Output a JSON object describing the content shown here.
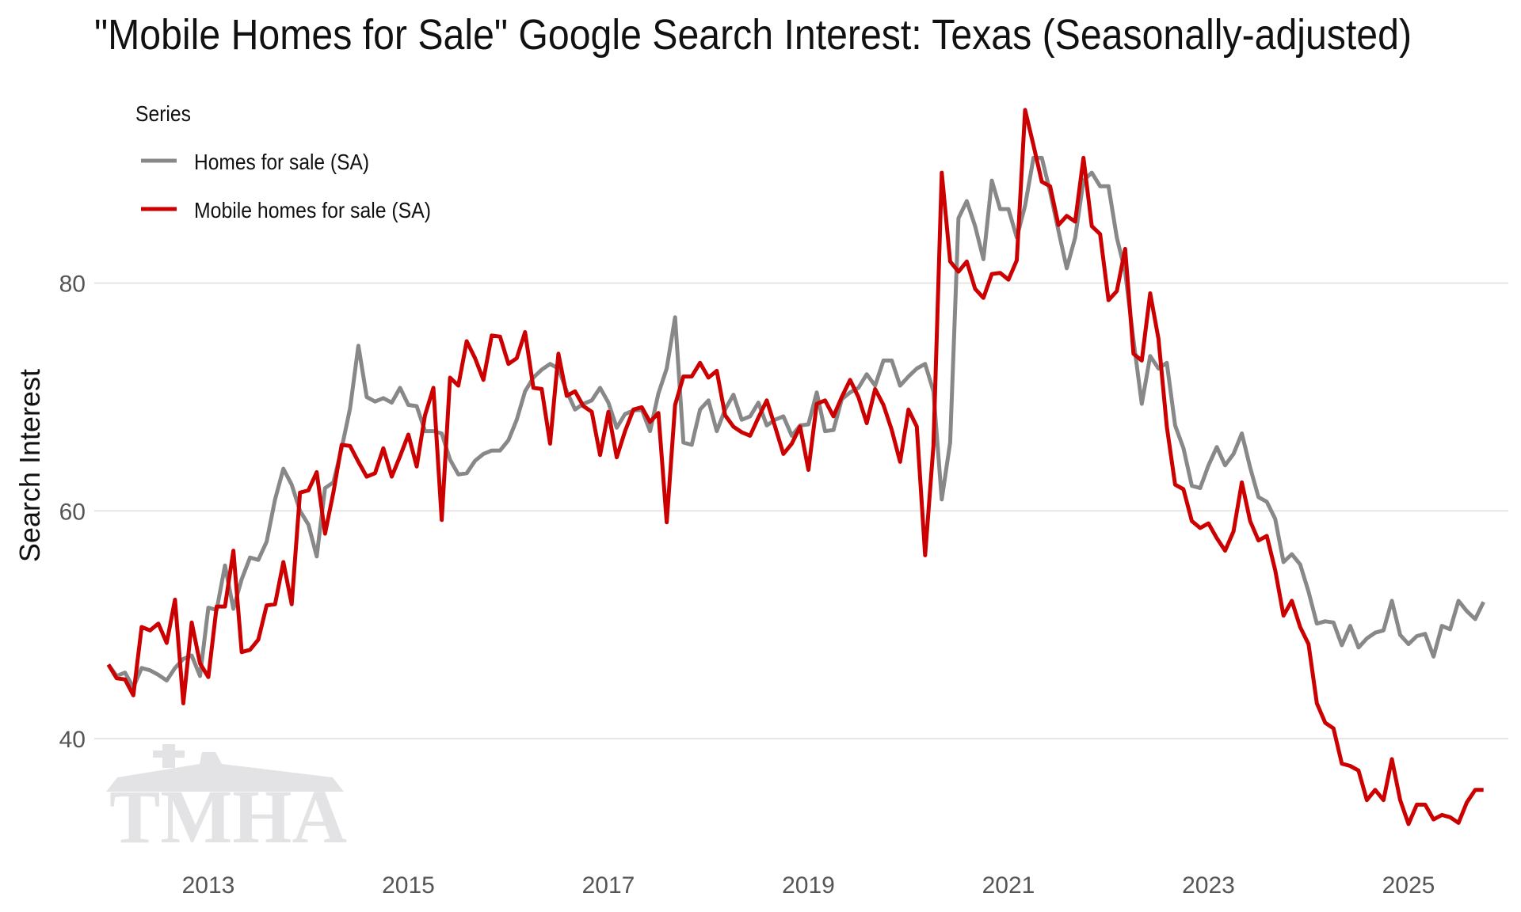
{
  "chart_data": {
    "type": "line",
    "title": "\"Mobile Homes for Sale\" Google Search Interest: Texas (Seasonally-adjusted)",
    "xlabel": "",
    "ylabel": "Search Interest",
    "x_start": "2012-01",
    "frequency": "monthly",
    "xlim": [
      2012.0,
      2025.8
    ],
    "ylim": [
      30,
      96
    ],
    "x_ticks": [
      2013,
      2015,
      2017,
      2019,
      2021,
      2023,
      2025
    ],
    "x_tick_labels": [
      "2013",
      "2015",
      "2017",
      "2019",
      "2021",
      "2023",
      "2025"
    ],
    "y_ticks": [
      40,
      60,
      80
    ],
    "y_tick_labels": [
      "40",
      "60",
      "80"
    ],
    "grid": "horizontal",
    "legend": {
      "title": "Series",
      "placement": "top-left"
    },
    "series": [
      {
        "name": "Homes for sale (SA)",
        "color": "#888888",
        "values": [
          46.5,
          45.5,
          45.8,
          44.5,
          46.2,
          46,
          45.6,
          45.1,
          46.2,
          47,
          47.3,
          45.5,
          51.5,
          51.3,
          55.2,
          51.4,
          54,
          55.9,
          55.7,
          57.3,
          61,
          63.7,
          62.3,
          60,
          58.8,
          56,
          62,
          62.5,
          65.5,
          69,
          74.5,
          70,
          69.6,
          69.9,
          69.5,
          70.8,
          69.3,
          69.2,
          67,
          67,
          66.8,
          64.5,
          63.2,
          63.3,
          64.4,
          65,
          65.3,
          65.3,
          66.2,
          68,
          70.5,
          71.7,
          72.4,
          72.9,
          72.5,
          70.5,
          68.9,
          69.4,
          69.7,
          70.8,
          69.5,
          67.3,
          68.5,
          68.8,
          68.9,
          67,
          70.3,
          72.5,
          77,
          66,
          65.8,
          68.9,
          69.7,
          67,
          68.9,
          70.2,
          68,
          68.3,
          69.5,
          67.5,
          68,
          68.3,
          66.6,
          67.5,
          67.6,
          70.4,
          67,
          67.1,
          69.8,
          70.4,
          70.8,
          72,
          71,
          73.2,
          73.2,
          71,
          71.8,
          72.5,
          72.9,
          70.5,
          61,
          66,
          85.7,
          87.2,
          85,
          82.1,
          89,
          86.5,
          86.5,
          84,
          86.8,
          91,
          91,
          88,
          84.6,
          81.3,
          84,
          89,
          89.7,
          88.5,
          88.5,
          84,
          81,
          75,
          69.4,
          73.6,
          72.5,
          73,
          67.5,
          65.5,
          62.2,
          62,
          64,
          65.6,
          64,
          65,
          66.8,
          63.8,
          61.2,
          60.8,
          59.3,
          55.5,
          56.2,
          55.3,
          52.9,
          50.1,
          50.3,
          50.2,
          48.2,
          49.9,
          48,
          48.8,
          49.3,
          49.5,
          52.1,
          49.1,
          48.3,
          49,
          49.2,
          47.2,
          49.9,
          49.6,
          52.1,
          51.2,
          50.5,
          52
        ]
      },
      {
        "name": "Mobile homes for sale (SA)",
        "color": "#cc0000",
        "values": [
          46.5,
          45.3,
          45.2,
          43.8,
          49.8,
          49.5,
          50.1,
          48.4,
          52.2,
          43.1,
          50.2,
          46.6,
          45.4,
          51.6,
          51.6,
          56.5,
          47.6,
          47.8,
          48.7,
          51.7,
          51.8,
          55.5,
          51.8,
          61.6,
          61.8,
          63.4,
          58,
          61.6,
          65.8,
          65.7,
          64.3,
          63,
          63.3,
          65.5,
          63,
          64.8,
          66.7,
          63.9,
          68.4,
          70.8,
          59.2,
          71.7,
          71,
          74.9,
          73.4,
          71.5,
          75.4,
          75.3,
          72.9,
          73.4,
          75.7,
          70.8,
          70.7,
          65.9,
          73.8,
          70.1,
          70.5,
          69.2,
          68.7,
          64.9,
          68.7,
          64.7,
          67,
          68.9,
          69.1,
          67.8,
          68.6,
          59,
          69.3,
          71.8,
          71.8,
          73,
          71.7,
          72.3,
          68.4,
          67.4,
          66.9,
          66.6,
          68.2,
          69.7,
          67.4,
          65,
          65.9,
          67.4,
          63.6,
          69.4,
          69.7,
          68.3,
          70,
          71.5,
          70,
          67.7,
          70.7,
          69.3,
          67.1,
          64.3,
          68.9,
          67.4,
          56.1,
          65.7,
          89.7,
          81.9,
          81,
          81.9,
          79.5,
          78.7,
          80.8,
          80.9,
          80.3,
          82,
          95.2,
          92.1,
          88.9,
          88.5,
          85.1,
          85.9,
          85.4,
          91,
          85,
          84.3,
          78.5,
          79.3,
          83,
          73.8,
          73.2,
          79.1,
          75.1,
          67.4,
          62.3,
          61.9,
          59.1,
          58.5,
          58.9,
          57.6,
          56.5,
          58.2,
          62.5,
          59.1,
          57.4,
          57.8,
          54.8,
          50.8,
          52.1,
          49.8,
          48.3,
          43.1,
          41.4,
          40.9,
          37.8,
          37.6,
          37.2,
          34.6,
          35.5,
          34.6,
          38.2,
          34.6,
          32.5,
          34.2,
          34.2,
          32.9,
          33.3,
          33.1,
          32.6,
          34.4,
          35.5,
          35.5
        ]
      }
    ]
  },
  "watermark": "TMHA"
}
